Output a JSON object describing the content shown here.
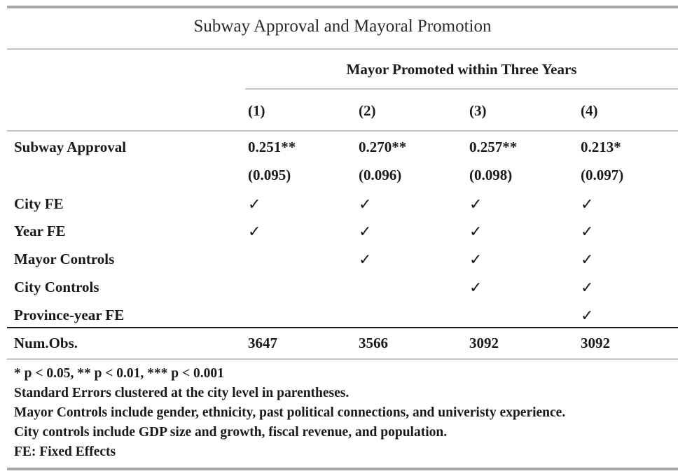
{
  "title": "Subway Approval and Mayoral Promotion",
  "dependent_variable": "Mayor Promoted within Three Years",
  "columns": [
    "(1)",
    "(2)",
    "(3)",
    "(4)"
  ],
  "check_glyph": "✓",
  "rows": {
    "subway_approval": {
      "label": "Subway Approval",
      "coefficients": [
        "0.251**",
        "0.270**",
        "0.257**",
        "0.213*"
      ],
      "standard_errors": [
        "(0.095)",
        "(0.096)",
        "(0.098)",
        "(0.097)"
      ]
    },
    "city_fe": {
      "label": "City FE",
      "included": [
        true,
        true,
        true,
        true
      ]
    },
    "year_fe": {
      "label": "Year FE",
      "included": [
        true,
        true,
        true,
        true
      ]
    },
    "mayor_controls": {
      "label": "Mayor Controls",
      "included": [
        false,
        true,
        true,
        true
      ]
    },
    "city_controls": {
      "label": "City Controls",
      "included": [
        false,
        false,
        true,
        true
      ]
    },
    "province_year_fe": {
      "label": "Province-year FE",
      "included": [
        false,
        false,
        false,
        true
      ]
    },
    "num_obs": {
      "label": "Num.Obs.",
      "values": [
        "3647",
        "3566",
        "3092",
        "3092"
      ]
    }
  },
  "notes": [
    "* p < 0.05, ** p < 0.01, *** p < 0.001",
    "Standard Errors clustered at the city level in parentheses.",
    "Mayor Controls include gender, ethnicity, past political connections, and univeristy experience.",
    "City controls include GDP size and growth, fiscal revenue, and population.",
    "FE: Fixed Effects"
  ]
}
